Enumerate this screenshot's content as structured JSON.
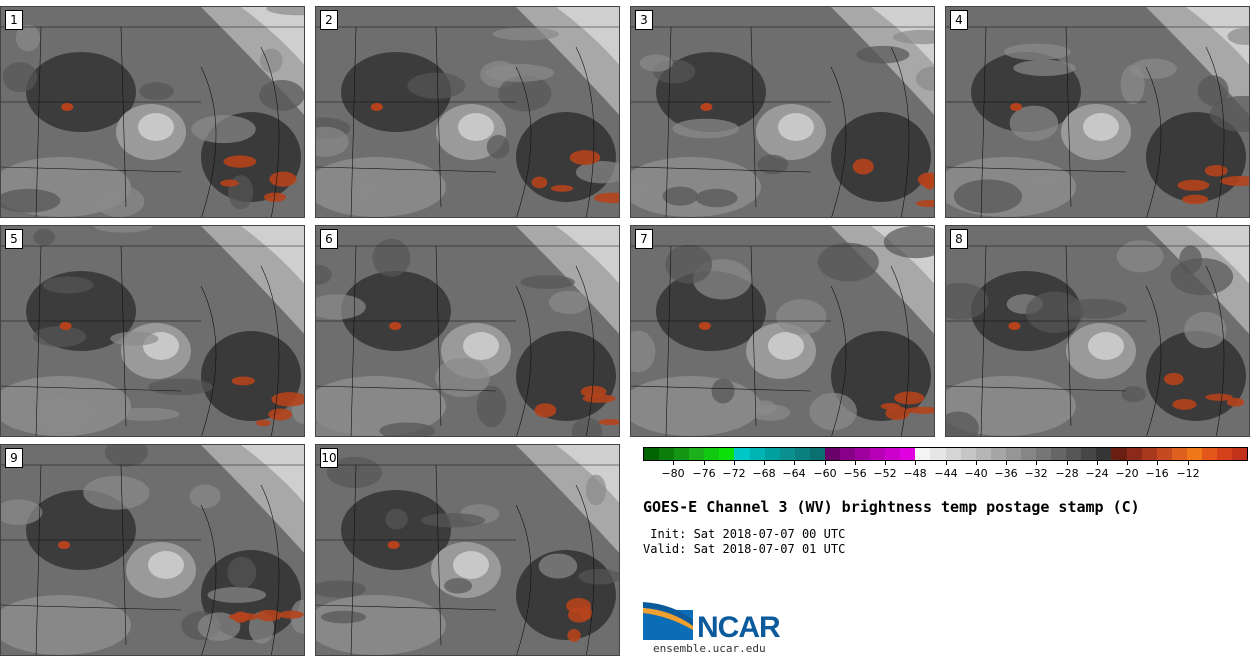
{
  "panels": [
    {
      "label": "1"
    },
    {
      "label": "2"
    },
    {
      "label": "3"
    },
    {
      "label": "4"
    },
    {
      "label": "5"
    },
    {
      "label": "6"
    },
    {
      "label": "7"
    },
    {
      "label": "8"
    },
    {
      "label": "9"
    },
    {
      "label": "10"
    }
  ],
  "colorbar": {
    "colors": [
      "#006400",
      "#0a7d0a",
      "#139613",
      "#1cb01c",
      "#12c912",
      "#0be00b",
      "#00c8c8",
      "#00b4b4",
      "#00a0a0",
      "#0b9090",
      "#0a8080",
      "#0b7070",
      "#6a006a",
      "#880088",
      "#a000a0",
      "#b800b8",
      "#cc00cc",
      "#e000e0",
      "#f5f5f5",
      "#e6e6e6",
      "#d6d6d6",
      "#c6c6c6",
      "#b6b6b6",
      "#a6a6a6",
      "#969696",
      "#868686",
      "#767676",
      "#666666",
      "#565656",
      "#464646",
      "#363636",
      "#6b1f13",
      "#8b2a18",
      "#a8391c",
      "#c54a1f",
      "#e0601f",
      "#f07818",
      "#e5561a",
      "#d4411b",
      "#c2321a"
    ],
    "ticks": [
      "−80",
      "−76",
      "−72",
      "−68",
      "−64",
      "−60",
      "−56",
      "−52",
      "−48",
      "−44",
      "−40",
      "−36",
      "−32",
      "−28",
      "−24",
      "−20",
      "−16",
      "−12"
    ]
  },
  "title": "GOES-E Channel 3 (WV) brightness temp postage stamp (C)",
  "init": " Init: Sat 2018-07-07 00 UTC",
  "valid": "Valid: Sat 2018-07-07 01 UTC",
  "logo": {
    "text": "NCAR",
    "site": "ensemble.ucar.edu",
    "color": "#0a5a9c"
  }
}
